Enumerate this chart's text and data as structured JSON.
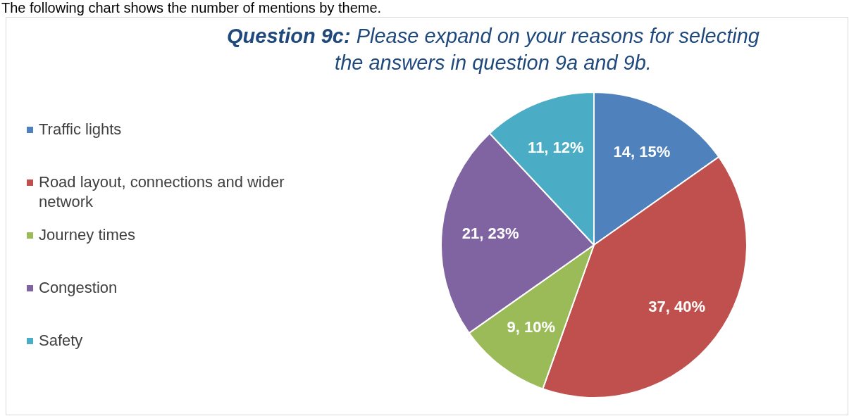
{
  "chart_data": {
    "type": "pie",
    "title": "Question 9c: Please expand on your reasons for selecting the answers in question 9a and 9b.",
    "annotations": [
      "The following chart shows the number of mentions by theme."
    ],
    "categories": [
      "Traffic lights",
      "Road layout, connections and wider network",
      "Journey times",
      "Congestion",
      "Safety"
    ],
    "values": [
      14,
      37,
      9,
      21,
      11
    ],
    "colors": [
      "#4f81bd",
      "#c0504d",
      "#9bbb59",
      "#8064a2",
      "#4bacc6"
    ],
    "value_labels": [
      "14, 15%",
      "37, 40%",
      "9, 10%",
      "21, 23%",
      "11, 12%"
    ],
    "legend": "left"
  }
}
